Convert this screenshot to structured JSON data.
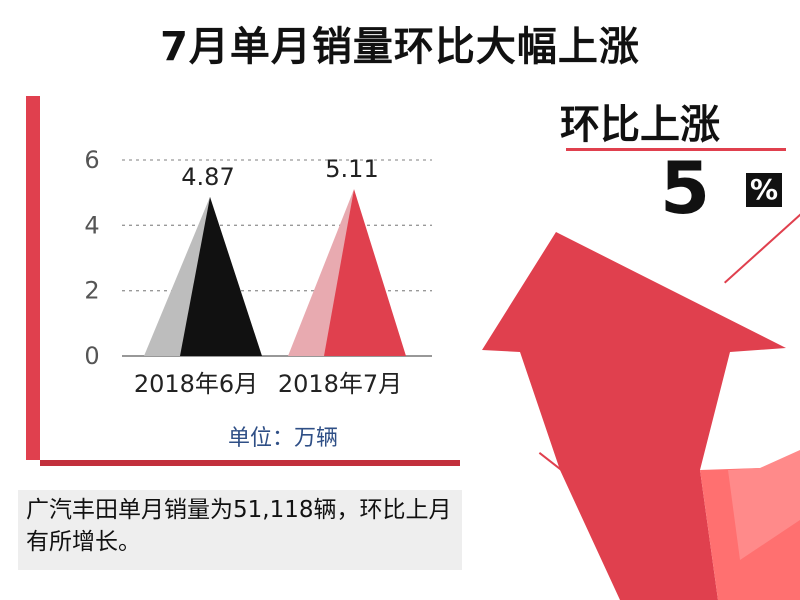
{
  "page": {
    "title": "7月单月销量环比大幅上涨",
    "kpi_label": "环比上涨",
    "kpi_value": "5",
    "kpi_unit": "%",
    "unit_text": "单位：万辆",
    "caption": "广汽丰田单月销量为51,118辆，环比上月有所增长。"
  },
  "colors": {
    "accent": "#e0404e",
    "dark": "#111111",
    "june_light": "#bdbdbd",
    "july_light": "#e8aab0"
  },
  "chart_data": {
    "type": "bar",
    "categories": [
      "2018年6月",
      "2018年7月"
    ],
    "values": [
      4.87,
      5.11
    ],
    "value_labels": [
      "4.87",
      "5.11"
    ],
    "ylim": [
      0,
      6
    ],
    "yticks": [
      0,
      2,
      4,
      6
    ],
    "grid": true,
    "unit": "单位：万辆"
  }
}
